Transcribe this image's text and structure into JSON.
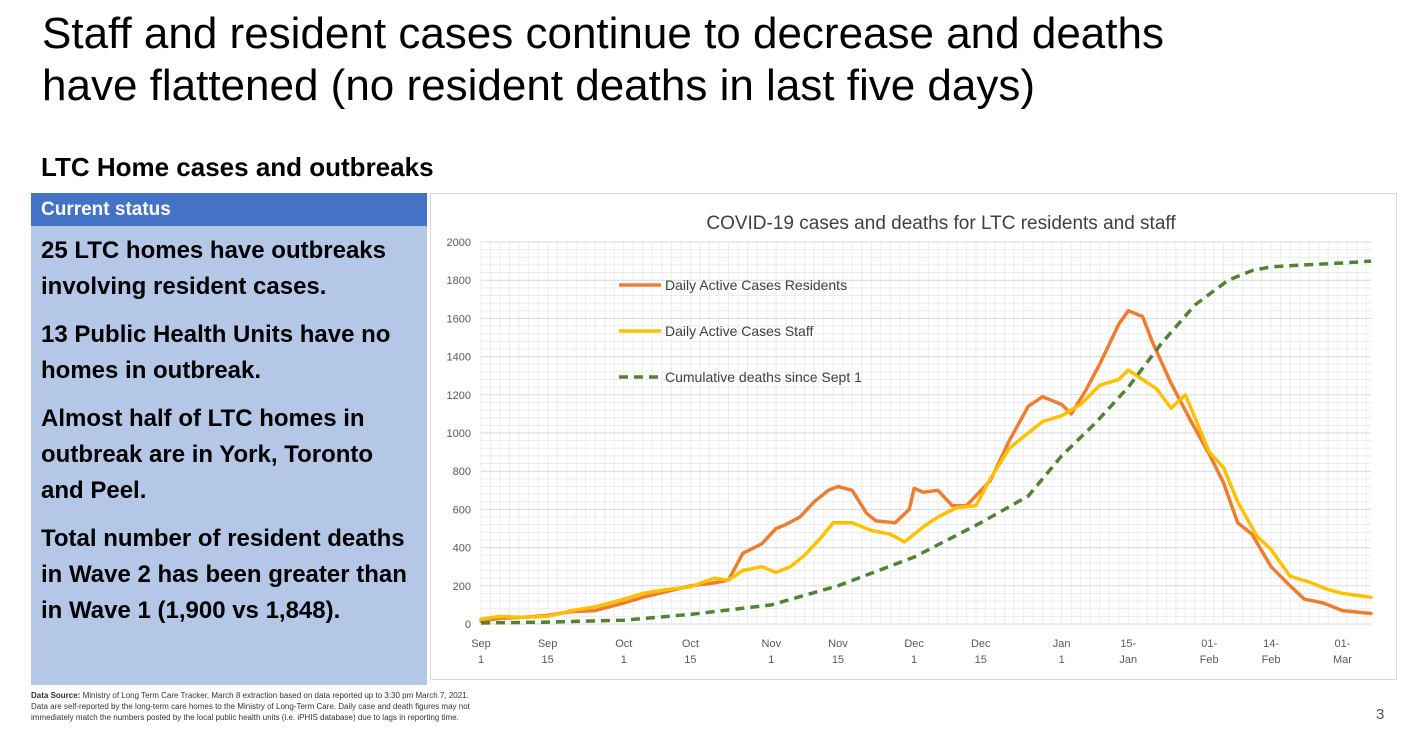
{
  "slide": {
    "title_line1": "Staff and resident cases continue to decrease and deaths",
    "title_line2": "have flattened (no resident deaths in last five days)",
    "section_heading": "LTC Home cases and outbreaks",
    "page_number": "3"
  },
  "status_panel": {
    "header": "Current status",
    "items": [
      "25 LTC homes have outbreaks involving resident cases.",
      "13 Public Health Units have no homes in outbreak.",
      "Almost half of LTC homes in outbreak are in York, Toronto and Peel.",
      "Total number of resident deaths in Wave 2 has been greater than in Wave 1 (1,900 vs 1,848)."
    ]
  },
  "source_note": {
    "label": "Data Source:",
    "text": "Ministry of Long Term Care Tracker, March 8 extraction based on data reported up to 3:30 pm March 7, 2021. Data are self-reported by the long-term care homes to the Ministry of Long-Term Care. Daily case and death figures may not immediately match the numbers posted by the local public health units (i.e. iPHIS database) due to lags in reporting time."
  },
  "colors": {
    "residents": "#ed7d31",
    "staff": "#ffc000",
    "deaths": "#548235",
    "panel_header": "#4472c4",
    "panel_body": "#b4c7e7"
  },
  "chart_data": {
    "type": "line",
    "title": "COVID-19 cases and deaths for LTC residents and staff",
    "xlabel": "",
    "ylabel": "",
    "ylim": [
      0,
      2000
    ],
    "y_ticks": [
      "0",
      "200",
      "400",
      "600",
      "800",
      "1000",
      "1200",
      "1400",
      "1600",
      "1800",
      "2000"
    ],
    "x_ticks": [
      {
        "date": "2020-09-01",
        "label": [
          "Sep",
          "1"
        ]
      },
      {
        "date": "2020-09-15",
        "label": [
          "Sep",
          "15"
        ]
      },
      {
        "date": "2020-10-01",
        "label": [
          "Oct",
          "1"
        ]
      },
      {
        "date": "2020-10-15",
        "label": [
          "Oct",
          "15"
        ]
      },
      {
        "date": "2020-11-01",
        "label": [
          "Nov",
          "1"
        ]
      },
      {
        "date": "2020-11-15",
        "label": [
          "Nov",
          "15"
        ]
      },
      {
        "date": "2020-12-01",
        "label": [
          "Dec",
          "1"
        ]
      },
      {
        "date": "2020-12-15",
        "label": [
          "Dec",
          "15"
        ]
      },
      {
        "date": "2021-01-01",
        "label": [
          "Jan",
          "1"
        ]
      },
      {
        "date": "2021-01-15",
        "label": [
          "15-",
          "Jan"
        ]
      },
      {
        "date": "2021-02-01",
        "label": [
          "01-",
          "Feb"
        ]
      },
      {
        "date": "2021-02-14",
        "label": [
          "14-",
          "Feb"
        ]
      },
      {
        "date": "2021-03-01",
        "label": [
          "01-",
          "Mar"
        ]
      }
    ],
    "x_range": [
      "2020-09-01",
      "2021-03-07"
    ],
    "grid": true,
    "legend_position": "top-left",
    "series": [
      {
        "name": "Daily Active Cases Residents",
        "style": "solid",
        "points": [
          [
            "2020-09-01",
            15
          ],
          [
            "2020-09-05",
            30
          ],
          [
            "2020-09-10",
            35
          ],
          [
            "2020-09-15",
            45
          ],
          [
            "2020-09-20",
            65
          ],
          [
            "2020-09-25",
            70
          ],
          [
            "2020-10-01",
            110
          ],
          [
            "2020-10-05",
            140
          ],
          [
            "2020-10-10",
            170
          ],
          [
            "2020-10-15",
            200
          ],
          [
            "2020-10-20",
            215
          ],
          [
            "2020-10-23",
            230
          ],
          [
            "2020-10-26",
            370
          ],
          [
            "2020-10-30",
            420
          ],
          [
            "2020-11-02",
            500
          ],
          [
            "2020-11-04",
            520
          ],
          [
            "2020-11-07",
            560
          ],
          [
            "2020-11-10",
            640
          ],
          [
            "2020-11-13",
            700
          ],
          [
            "2020-11-15",
            720
          ],
          [
            "2020-11-18",
            700
          ],
          [
            "2020-11-21",
            580
          ],
          [
            "2020-11-23",
            540
          ],
          [
            "2020-11-27",
            530
          ],
          [
            "2020-11-30",
            600
          ],
          [
            "2020-12-01",
            710
          ],
          [
            "2020-12-03",
            690
          ],
          [
            "2020-12-06",
            700
          ],
          [
            "2020-12-09",
            620
          ],
          [
            "2020-12-12",
            620
          ],
          [
            "2020-12-17",
            750
          ],
          [
            "2020-12-21",
            960
          ],
          [
            "2020-12-25",
            1140
          ],
          [
            "2020-12-28",
            1190
          ],
          [
            "2021-01-01",
            1150
          ],
          [
            "2021-01-03",
            1100
          ],
          [
            "2021-01-06",
            1220
          ],
          [
            "2021-01-09",
            1360
          ],
          [
            "2021-01-13",
            1570
          ],
          [
            "2021-01-15",
            1640
          ],
          [
            "2021-01-18",
            1610
          ],
          [
            "2021-01-20",
            1480
          ],
          [
            "2021-01-24",
            1260
          ],
          [
            "2021-01-28",
            1070
          ],
          [
            "2021-02-01",
            890
          ],
          [
            "2021-02-04",
            740
          ],
          [
            "2021-02-07",
            530
          ],
          [
            "2021-02-10",
            470
          ],
          [
            "2021-02-14",
            300
          ],
          [
            "2021-02-18",
            200
          ],
          [
            "2021-02-21",
            130
          ],
          [
            "2021-02-25",
            110
          ],
          [
            "2021-03-01",
            70
          ],
          [
            "2021-03-07",
            55
          ]
        ]
      },
      {
        "name": "Daily Active Cases Staff",
        "style": "solid",
        "points": [
          [
            "2020-09-01",
            25
          ],
          [
            "2020-09-05",
            40
          ],
          [
            "2020-09-10",
            35
          ],
          [
            "2020-09-15",
            40
          ],
          [
            "2020-09-20",
            70
          ],
          [
            "2020-09-25",
            90
          ],
          [
            "2020-10-01",
            130
          ],
          [
            "2020-10-05",
            160
          ],
          [
            "2020-10-10",
            180
          ],
          [
            "2020-10-15",
            195
          ],
          [
            "2020-10-20",
            240
          ],
          [
            "2020-10-23",
            230
          ],
          [
            "2020-10-26",
            280
          ],
          [
            "2020-10-30",
            300
          ],
          [
            "2020-11-02",
            270
          ],
          [
            "2020-11-05",
            300
          ],
          [
            "2020-11-08",
            360
          ],
          [
            "2020-11-11",
            440
          ],
          [
            "2020-11-14",
            530
          ],
          [
            "2020-11-18",
            530
          ],
          [
            "2020-11-22",
            490
          ],
          [
            "2020-11-26",
            470
          ],
          [
            "2020-11-29",
            430
          ],
          [
            "2020-12-03",
            510
          ],
          [
            "2020-12-06",
            560
          ],
          [
            "2020-12-10",
            610
          ],
          [
            "2020-12-14",
            620
          ],
          [
            "2020-12-17",
            760
          ],
          [
            "2020-12-21",
            920
          ],
          [
            "2020-12-25",
            1000
          ],
          [
            "2020-12-28",
            1060
          ],
          [
            "2021-01-01",
            1090
          ],
          [
            "2021-01-05",
            1150
          ],
          [
            "2021-01-09",
            1250
          ],
          [
            "2021-01-13",
            1280
          ],
          [
            "2021-01-15",
            1330
          ],
          [
            "2021-01-18",
            1280
          ],
          [
            "2021-01-21",
            1230
          ],
          [
            "2021-01-24",
            1130
          ],
          [
            "2021-01-27",
            1200
          ],
          [
            "2021-02-01",
            900
          ],
          [
            "2021-02-04",
            820
          ],
          [
            "2021-02-07",
            640
          ],
          [
            "2021-02-11",
            460
          ],
          [
            "2021-02-14",
            390
          ],
          [
            "2021-02-18",
            250
          ],
          [
            "2021-02-22",
            220
          ],
          [
            "2021-02-26",
            180
          ],
          [
            "2021-03-01",
            160
          ],
          [
            "2021-03-07",
            140
          ]
        ]
      },
      {
        "name": "Cumulative deaths since Sept 1",
        "style": "dashed",
        "points": [
          [
            "2020-09-01",
            5
          ],
          [
            "2020-09-15",
            10
          ],
          [
            "2020-10-01",
            20
          ],
          [
            "2020-10-15",
            50
          ],
          [
            "2020-11-01",
            100
          ],
          [
            "2020-11-15",
            200
          ],
          [
            "2020-12-01",
            350
          ],
          [
            "2020-12-15",
            530
          ],
          [
            "2020-12-25",
            670
          ],
          [
            "2021-01-01",
            880
          ],
          [
            "2021-01-08",
            1050
          ],
          [
            "2021-01-15",
            1240
          ],
          [
            "2021-01-22",
            1470
          ],
          [
            "2021-01-29",
            1670
          ],
          [
            "2021-02-05",
            1800
          ],
          [
            "2021-02-10",
            1850
          ],
          [
            "2021-02-14",
            1870
          ],
          [
            "2021-02-21",
            1880
          ],
          [
            "2021-03-01",
            1890
          ],
          [
            "2021-03-07",
            1900
          ]
        ]
      }
    ]
  }
}
